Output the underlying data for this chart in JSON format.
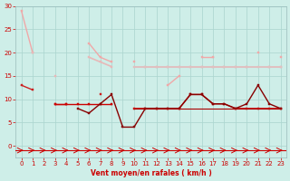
{
  "background": "#ceeee8",
  "grid_color": "#aad4ce",
  "xlabel": "Vent moyen/en rafales ( km/h )",
  "ylim": [
    0,
    30
  ],
  "xlim": [
    -0.5,
    23.5
  ],
  "yticks": [
    0,
    5,
    10,
    15,
    20,
    25,
    30
  ],
  "xticks": [
    0,
    1,
    2,
    3,
    4,
    5,
    6,
    7,
    8,
    9,
    10,
    11,
    12,
    13,
    14,
    15,
    16,
    17,
    18,
    19,
    20,
    21,
    22,
    23
  ],
  "line_lightest": [
    29,
    20,
    null,
    null,
    null,
    null,
    22,
    19,
    18,
    null,
    18,
    null,
    null,
    13,
    15,
    null,
    19,
    19,
    null,
    null,
    null,
    20,
    null,
    19
  ],
  "line_light2": [
    null,
    20,
    null,
    15,
    null,
    null,
    19,
    18,
    17,
    null,
    null,
    17,
    17,
    17,
    17,
    17,
    17,
    17,
    17,
    17,
    17,
    null,
    17,
    17
  ],
  "line_med": [
    null,
    null,
    null,
    null,
    null,
    null,
    null,
    null,
    null,
    null,
    17,
    17,
    17,
    17,
    17,
    17,
    17,
    17,
    17,
    17,
    17,
    17,
    17,
    17
  ],
  "line_dark1": [
    13,
    12,
    null,
    9,
    9,
    null,
    null,
    11,
    null,
    null,
    null,
    null,
    null,
    null,
    null,
    null,
    null,
    null,
    null,
    null,
    null,
    null,
    null,
    null
  ],
  "line_dark2": [
    null,
    null,
    null,
    9,
    9,
    9,
    9,
    9,
    9,
    null,
    8,
    8,
    8,
    8,
    8,
    11,
    11,
    9,
    9,
    8,
    8,
    8,
    8,
    8
  ],
  "line_dark3": [
    null,
    null,
    null,
    null,
    null,
    8,
    7,
    9,
    11,
    4,
    4,
    8,
    8,
    8,
    8,
    11,
    11,
    9,
    9,
    8,
    9,
    13,
    9,
    8
  ],
  "line_dark4": [
    null,
    null,
    null,
    null,
    null,
    null,
    null,
    null,
    null,
    null,
    8,
    8,
    8,
    8,
    8,
    8,
    8,
    8,
    8,
    8,
    8,
    8,
    8,
    8
  ],
  "col_lightest": "#f0a8a8",
  "col_light": "#e8b8b8",
  "col_med": "#e0c0c0",
  "col_dark1": "#cc2020",
  "col_dark2": "#cc0000",
  "col_dark3": "#880000",
  "col_dark4": "#aa0000"
}
